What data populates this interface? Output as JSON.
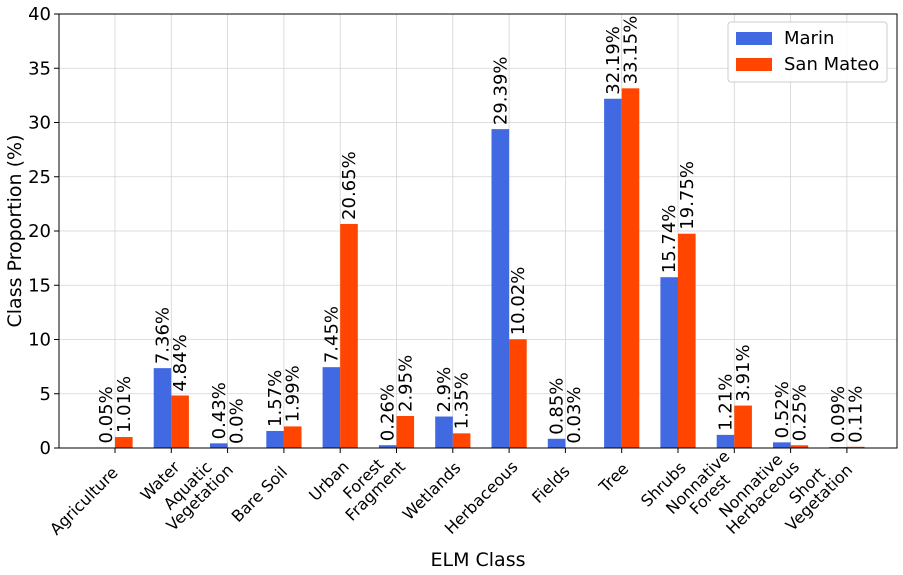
{
  "chart_data": {
    "type": "bar",
    "title": "",
    "xlabel": "ELM Class",
    "ylabel": "Class Proportion (%)",
    "ylim": [
      0,
      40
    ],
    "yticks": [
      0,
      5,
      10,
      15,
      20,
      25,
      30,
      35,
      40
    ],
    "grid": true,
    "legend_position": "top-right",
    "categories": [
      [
        "Agriculture"
      ],
      [
        "Water"
      ],
      [
        "Aquatic",
        "Vegetation"
      ],
      [
        "Bare Soil"
      ],
      [
        "Urban"
      ],
      [
        "Forest",
        "Fragment"
      ],
      [
        "Wetlands"
      ],
      [
        "Herbaceous"
      ],
      [
        "Fields"
      ],
      [
        "Tree"
      ],
      [
        "Shrubs"
      ],
      [
        "Nonnative",
        "Forest"
      ],
      [
        "Nonnative",
        "Herbaceous"
      ],
      [
        "Short",
        "Vegetation"
      ]
    ],
    "series": [
      {
        "name": "Marin",
        "color": "#4169e1",
        "values": [
          0.05,
          7.36,
          0.43,
          1.57,
          7.45,
          0.26,
          2.9,
          29.39,
          0.85,
          32.19,
          15.74,
          1.21,
          0.52,
          0.09
        ],
        "labels": [
          "0.05%",
          "7.36%",
          "0.43%",
          "1.57%",
          "7.45%",
          "0.26%",
          "2.9%",
          "29.39%",
          "0.85%",
          "32.19%",
          "15.74%",
          "1.21%",
          "0.52%",
          "0.09%"
        ]
      },
      {
        "name": "San Mateo",
        "color": "#ff4500",
        "values": [
          1.01,
          4.84,
          0.0,
          1.99,
          20.65,
          2.95,
          1.35,
          10.02,
          0.03,
          33.15,
          19.75,
          3.91,
          0.25,
          0.11
        ],
        "labels": [
          "1.01%",
          "4.84%",
          "0.0%",
          "1.99%",
          "20.65%",
          "2.95%",
          "1.35%",
          "10.02%",
          "0.03%",
          "33.15%",
          "19.75%",
          "3.91%",
          "0.25%",
          "0.11%"
        ]
      }
    ]
  }
}
